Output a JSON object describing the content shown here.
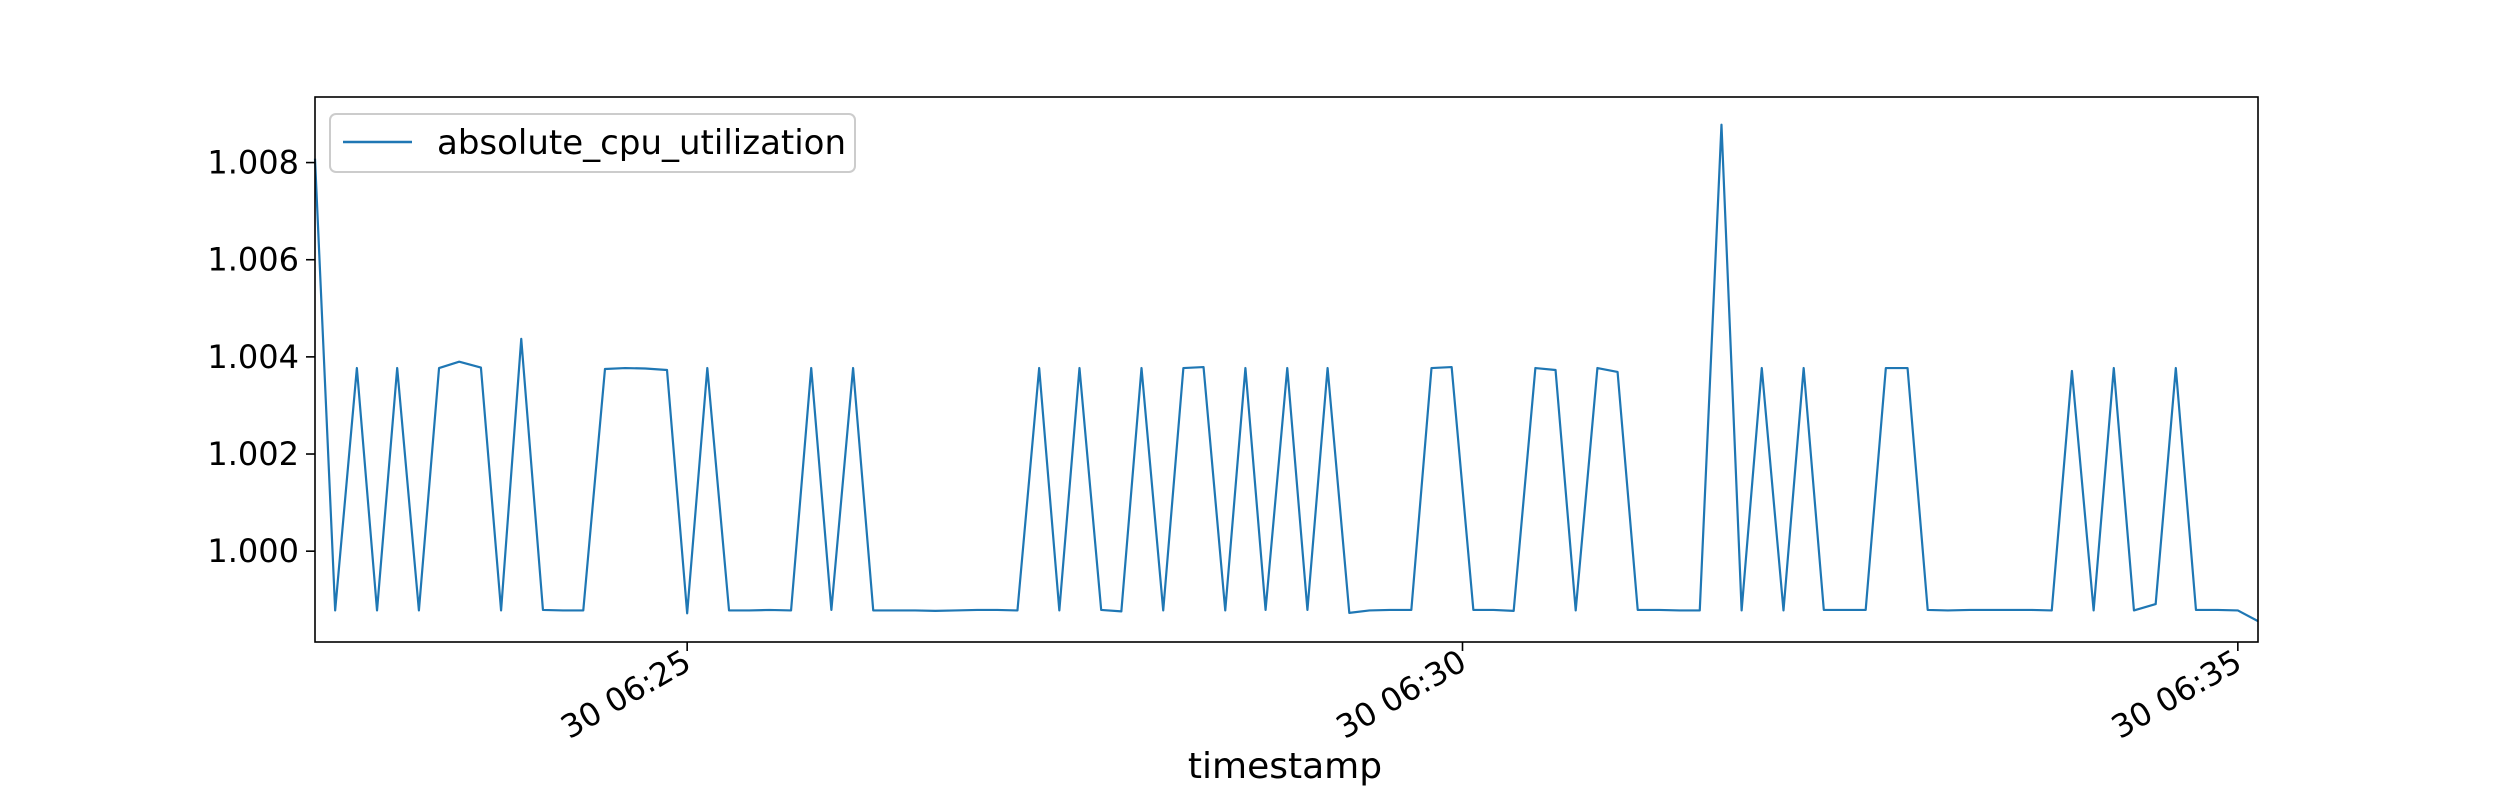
{
  "chart_data": {
    "type": "line",
    "xlabel": "timestamp",
    "ylabel": "",
    "x_range_minutes": [
      "06:22.6",
      "06:39.4"
    ],
    "xlim": [
      "30 06:22:36",
      "30 06:39:24"
    ],
    "ylim": [
      0.99813,
      1.00935
    ],
    "x_ticks": [
      {
        "label": "30 06:25",
        "minute": 25
      },
      {
        "label": "30 06:30",
        "minute": 30
      },
      {
        "label": "30 06:35",
        "minute": 35
      }
    ],
    "y_ticks": [
      {
        "label": "1.000",
        "value": 1.0
      },
      {
        "label": "1.002",
        "value": 1.002
      },
      {
        "label": "1.004",
        "value": 1.004
      },
      {
        "label": "1.006",
        "value": 1.006
      },
      {
        "label": "1.008",
        "value": 1.008
      }
    ],
    "legend": {
      "position": "upper-left",
      "entries": [
        "absolute_cpu_utilization"
      ]
    },
    "grid": false,
    "series": [
      {
        "name": "absolute_cpu_utilization",
        "color": "#1f77b4",
        "points": [
          [
            22.6,
            1.00808
          ],
          [
            22.73,
            0.99878
          ],
          [
            22.87,
            1.00377
          ],
          [
            23.0,
            0.99878
          ],
          [
            23.13,
            1.00377
          ],
          [
            23.27,
            0.99878
          ],
          [
            23.4,
            1.00377
          ],
          [
            23.53,
            1.0039
          ],
          [
            23.67,
            1.00378
          ],
          [
            23.8,
            0.99878
          ],
          [
            23.93,
            1.00437
          ],
          [
            24.07,
            0.99879
          ],
          [
            24.2,
            0.99878
          ],
          [
            24.33,
            0.99878
          ],
          [
            24.47,
            1.00375
          ],
          [
            24.6,
            1.00377
          ],
          [
            24.73,
            1.00376
          ],
          [
            24.87,
            1.00373
          ],
          [
            25.0,
            0.99872
          ],
          [
            25.13,
            1.00377
          ],
          [
            25.27,
            0.99878
          ],
          [
            25.4,
            0.99878
          ],
          [
            25.53,
            0.99879
          ],
          [
            25.67,
            0.99878
          ],
          [
            25.8,
            1.00377
          ],
          [
            25.93,
            0.99879
          ],
          [
            26.07,
            1.00377
          ],
          [
            26.2,
            0.99878
          ],
          [
            26.33,
            0.99878
          ],
          [
            26.47,
            0.99878
          ],
          [
            26.6,
            0.99877
          ],
          [
            26.73,
            0.99878
          ],
          [
            26.87,
            0.99879
          ],
          [
            27.0,
            0.99879
          ],
          [
            27.13,
            0.99878
          ],
          [
            27.27,
            1.00377
          ],
          [
            27.4,
            0.99878
          ],
          [
            27.53,
            1.00377
          ],
          [
            27.67,
            0.99879
          ],
          [
            27.8,
            0.99876
          ],
          [
            27.93,
            1.00377
          ],
          [
            28.07,
            0.99878
          ],
          [
            28.2,
            1.00377
          ],
          [
            28.33,
            1.00379
          ],
          [
            28.47,
            0.99878
          ],
          [
            28.6,
            1.00377
          ],
          [
            28.73,
            0.99879
          ],
          [
            28.87,
            1.00377
          ],
          [
            29.0,
            0.99879
          ],
          [
            29.13,
            1.00377
          ],
          [
            29.27,
            0.99873
          ],
          [
            29.4,
            0.99878
          ],
          [
            29.53,
            0.99879
          ],
          [
            29.67,
            0.99879
          ],
          [
            29.8,
            1.00377
          ],
          [
            29.93,
            1.00379
          ],
          [
            30.07,
            0.99879
          ],
          [
            30.2,
            0.99879
          ],
          [
            30.33,
            0.99877
          ],
          [
            30.47,
            1.00377
          ],
          [
            30.6,
            1.00373
          ],
          [
            30.73,
            0.99878
          ],
          [
            30.87,
            1.00377
          ],
          [
            31.0,
            1.00369
          ],
          [
            31.13,
            0.99879
          ],
          [
            31.27,
            0.99879
          ],
          [
            31.4,
            0.99878
          ],
          [
            31.53,
            0.99878
          ],
          [
            31.67,
            1.00878
          ],
          [
            31.8,
            0.99878
          ],
          [
            31.93,
            1.00377
          ],
          [
            32.07,
            0.99878
          ],
          [
            32.2,
            1.00377
          ],
          [
            32.33,
            0.99879
          ],
          [
            32.47,
            0.99879
          ],
          [
            32.6,
            0.99879
          ],
          [
            32.73,
            1.00377
          ],
          [
            32.87,
            1.00377
          ],
          [
            33.0,
            0.99879
          ],
          [
            33.13,
            0.99878
          ],
          [
            33.27,
            0.99879
          ],
          [
            33.4,
            0.99879
          ],
          [
            33.53,
            0.99879
          ],
          [
            33.67,
            0.99879
          ],
          [
            33.8,
            0.99878
          ],
          [
            33.93,
            1.00371
          ],
          [
            34.07,
            0.99878
          ],
          [
            34.2,
            1.00377
          ],
          [
            34.33,
            0.99878
          ],
          [
            34.47,
            0.99891
          ],
          [
            34.6,
            1.00377
          ],
          [
            34.73,
            0.99879
          ],
          [
            34.87,
            0.99879
          ],
          [
            35.0,
            0.99878
          ],
          [
            35.13,
            0.99856
          ]
        ]
      }
    ]
  }
}
